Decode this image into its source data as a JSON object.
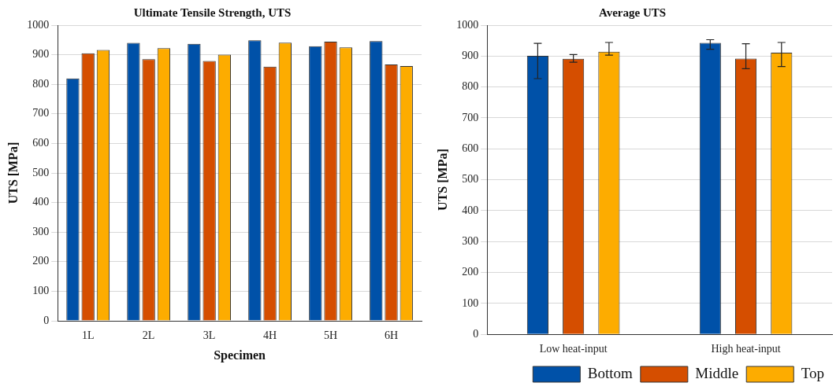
{
  "chart_data": [
    {
      "type": "bar",
      "title": "Ultimate Tensile Strength, UTS",
      "xlabel": "Specimen",
      "ylabel": "UTS [MPa]",
      "categories": [
        "1L",
        "2L",
        "3L",
        "4H",
        "5H",
        "6H"
      ],
      "series": [
        {
          "color": "#0051a8",
          "values": [
            820,
            940,
            937,
            949,
            929,
            946
          ]
        },
        {
          "color": "#d54e00",
          "values": [
            905,
            885,
            879,
            860,
            944,
            867
          ]
        },
        {
          "color": "#fdac00",
          "values": [
            916,
            922,
            900,
            941,
            925,
            862
          ]
        }
      ],
      "ylim": [
        0,
        1000
      ],
      "yticks": [
        0,
        100,
        200,
        300,
        400,
        500,
        600,
        700,
        800,
        900,
        1000
      ],
      "grid": "y"
    },
    {
      "type": "bar",
      "title": "Average UTS",
      "ylabel": "UTS [MPa]",
      "categories": [
        "Low heat-input",
        "High heat-input"
      ],
      "series": [
        {
          "name": "Bottom",
          "color": "#0051a8",
          "values": [
            901,
            943
          ],
          "errors": [
            [
              827,
              941
            ],
            [
              922,
              953
            ]
          ]
        },
        {
          "name": "Middle",
          "color": "#d54e00",
          "values": [
            891,
            892
          ],
          "errors": [
            [
              880,
              905
            ],
            [
              859,
              940
            ]
          ]
        },
        {
          "name": "Top",
          "color": "#fdac00",
          "values": [
            914,
            911
          ],
          "errors": [
            [
              903,
              944
            ],
            [
              866,
              944
            ]
          ]
        }
      ],
      "ylim": [
        0,
        1000
      ],
      "yticks": [
        0,
        100,
        200,
        300,
        400,
        500,
        600,
        700,
        800,
        900,
        1000
      ],
      "grid": "y",
      "legend": "bottom right"
    }
  ]
}
